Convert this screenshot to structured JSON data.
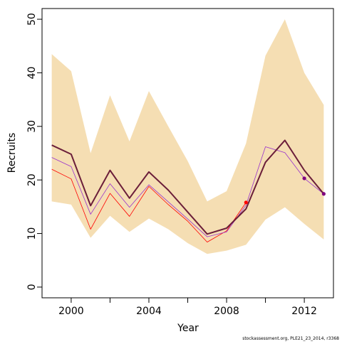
{
  "chart_data": {
    "type": "line",
    "title": "",
    "xlabel": "Year",
    "ylabel": "Recruits",
    "xlim": [
      1998.5,
      2013.5
    ],
    "ylim": [
      -2,
      52
    ],
    "x_ticks_labeled": [
      2000,
      2004,
      2008,
      2012
    ],
    "x_ticks_minor": [
      2002,
      2006,
      2010
    ],
    "y_ticks": [
      0,
      10,
      20,
      30,
      40,
      50
    ],
    "x": [
      1999,
      2000,
      2001,
      2002,
      2003,
      2004,
      2005,
      2006,
      2007,
      2008,
      2009,
      2010,
      2011,
      2012,
      2013
    ],
    "band": {
      "color": "#f5deb3",
      "upper": [
        43.5,
        40.3,
        25,
        35.8,
        27.2,
        36.6,
        30,
        23.5,
        16,
        17.9,
        26.8,
        43.2,
        50,
        40,
        34
      ],
      "lower": [
        16,
        15.4,
        9.2,
        13.3,
        10.3,
        12.8,
        10.8,
        8.2,
        6.2,
        6.8,
        7.9,
        12.6,
        14.9,
        11.8,
        8.9
      ]
    },
    "series": [
      {
        "color": "#ff0000",
        "width": 0.8,
        "values": [
          22,
          20.2,
          10.8,
          17.5,
          13.2,
          18.8,
          15.4,
          12.3,
          8.4,
          10.5,
          15.8,
          null,
          null,
          null,
          null
        ]
      },
      {
        "color": "#9932cc",
        "width": 0.8,
        "values": [
          24.2,
          22.5,
          13.6,
          19.3,
          14.9,
          19.1,
          15.9,
          12.7,
          9.4,
          10.3,
          15.3,
          26.2,
          25.1,
          20.3,
          17.4
        ]
      },
      {
        "color": "#6b1e3a",
        "width": 2,
        "values": [
          26.5,
          24.8,
          15.2,
          21.8,
          16.6,
          21.5,
          18.1,
          14,
          9.9,
          11,
          14.6,
          23.3,
          27.4,
          21.8,
          17.4
        ]
      }
    ],
    "points": [
      {
        "x": 2009,
        "y": 15.8,
        "color": "#ff0000"
      },
      {
        "x": 2012,
        "y": 20.3,
        "color": "#800080"
      },
      {
        "x": 2013,
        "y": 17.4,
        "color": "#800080"
      }
    ],
    "footnote": "stockassessment.org, PLE21_23_2014, r3368"
  }
}
